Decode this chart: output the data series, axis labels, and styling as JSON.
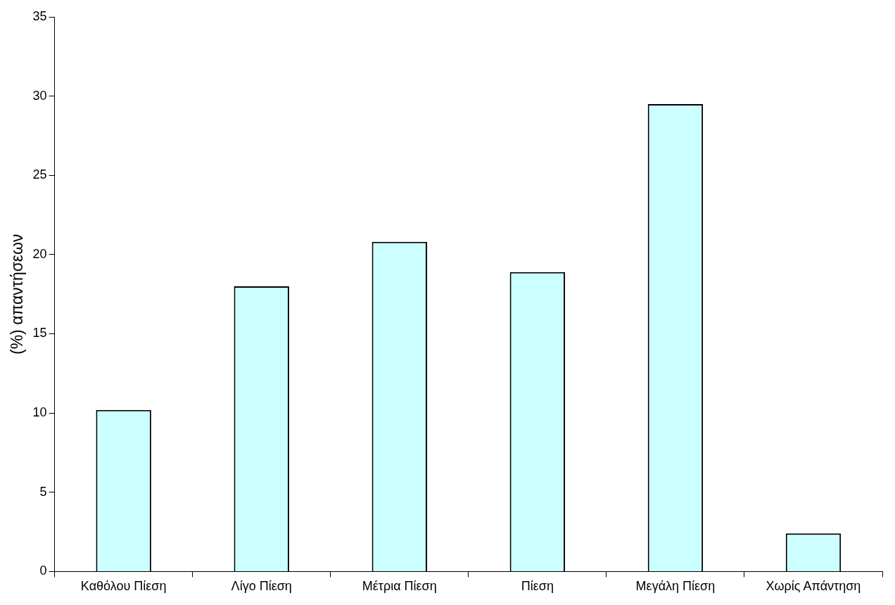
{
  "chart_data": {
    "type": "bar",
    "ylabel": "(%) απαντήσεων",
    "categories": [
      "Καθόλου Πίεση",
      "Λίγο Πίεση",
      "Μέτρια Πίεση",
      "Πίεση",
      "Μεγάλη Πίεση",
      "Χωρίς Απάντηση"
    ],
    "values": [
      10.2,
      18.0,
      20.8,
      18.9,
      29.5,
      2.4
    ],
    "color": "#ccffff",
    "ylim": [
      0,
      35
    ],
    "yticks": [
      0,
      5,
      10,
      15,
      20,
      25,
      30,
      35
    ],
    "grid": false,
    "legend": false
  }
}
